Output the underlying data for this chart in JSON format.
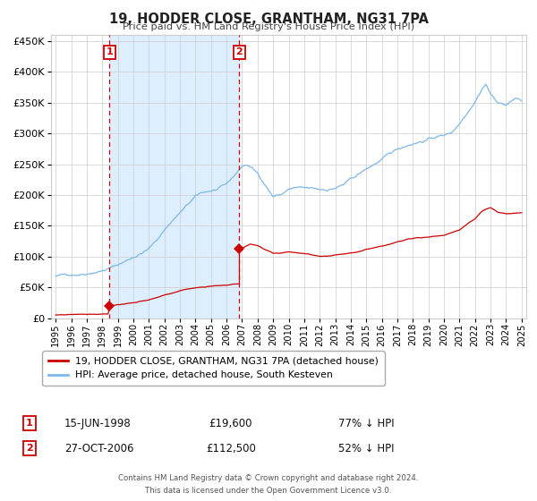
{
  "title": "19, HODDER CLOSE, GRANTHAM, NG31 7PA",
  "subtitle": "Price paid vs. HM Land Registry's House Price Index (HPI)",
  "transaction1": {
    "date": "15-JUN-1998",
    "price": 19600,
    "hpi_pct": "77% ↓ HPI"
  },
  "transaction2": {
    "date": "27-OCT-2006",
    "price": 112500,
    "hpi_pct": "52% ↓ HPI"
  },
  "marker1_year": 1998.46,
  "marker2_year": 2006.83,
  "ylim": [
    0,
    460000
  ],
  "xlim_start": 1994.7,
  "xlim_end": 2025.3,
  "yticks": [
    0,
    50000,
    100000,
    150000,
    200000,
    250000,
    300000,
    350000,
    400000,
    450000
  ],
  "xticks": [
    1995,
    1996,
    1997,
    1998,
    1999,
    2000,
    2001,
    2002,
    2003,
    2004,
    2005,
    2006,
    2007,
    2008,
    2009,
    2010,
    2011,
    2012,
    2013,
    2014,
    2015,
    2016,
    2017,
    2018,
    2019,
    2020,
    2021,
    2022,
    2023,
    2024,
    2025
  ],
  "hpi_color": "#7eb8e8",
  "price_color": "#cc0000",
  "shade_color": "#ddeeff",
  "grid_color": "#cccccc",
  "bg_color": "#ffffff",
  "legend_border_color": "#aaaaaa",
  "marker_box_color": "#cc0000",
  "footnote1": "Contains HM Land Registry data © Crown copyright and database right 2024.",
  "footnote2": "This data is licensed under the Open Government Licence v3.0.",
  "legend_line1": "19, HODDER CLOSE, GRANTHAM, NG31 7PA (detached house)",
  "legend_line2": "HPI: Average price, detached house, South Kesteven"
}
